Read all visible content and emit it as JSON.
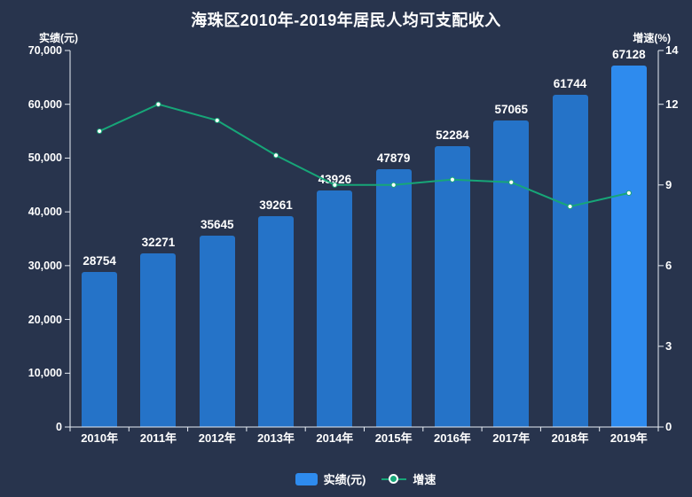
{
  "title": "海珠区2010年-2019年居民人均可支配收入",
  "axes": {
    "left_name": "实绩(元)",
    "right_name": "增速(%)"
  },
  "legend": {
    "bar_label": "实绩(元)",
    "line_label": "增速"
  },
  "colors": {
    "background": "#28344d",
    "bar": "#2573c8",
    "bar_highlight": "#2e8bee",
    "line": "#17a678",
    "marker_fill": "#ffffff",
    "axis_line": "#e9eef5",
    "text": "#ffffff"
  },
  "chart_data": {
    "type": "combo",
    "title": "海珠区2010年-2019年居民人均可支配收入",
    "categories": [
      "2010年",
      "2011年",
      "2012年",
      "2013年",
      "2014年",
      "2015年",
      "2016年",
      "2017年",
      "2018年",
      "2019年"
    ],
    "series": [
      {
        "name": "实绩(元)",
        "type": "bar",
        "axis": "left",
        "values": [
          28754,
          32271,
          35645,
          39261,
          43926,
          47879,
          52284,
          57065,
          61744,
          67128
        ]
      },
      {
        "name": "增速",
        "type": "line",
        "axis": "right",
        "values": [
          11.0,
          12.0,
          11.4,
          10.1,
          9.0,
          9.0,
          9.2,
          9.1,
          8.2,
          8.7
        ]
      }
    ],
    "left_axis": {
      "label": "实绩(元)",
      "range": [
        0,
        70000
      ],
      "tick_step": 10000
    },
    "right_axis": {
      "label": "增速(%)",
      "range": [
        0,
        14
      ],
      "ticks": [
        0,
        3,
        6,
        9,
        12,
        14
      ]
    },
    "grid": false,
    "legend_position": "bottom",
    "highlight_last_bar": true,
    "bar_value_labels": true
  }
}
